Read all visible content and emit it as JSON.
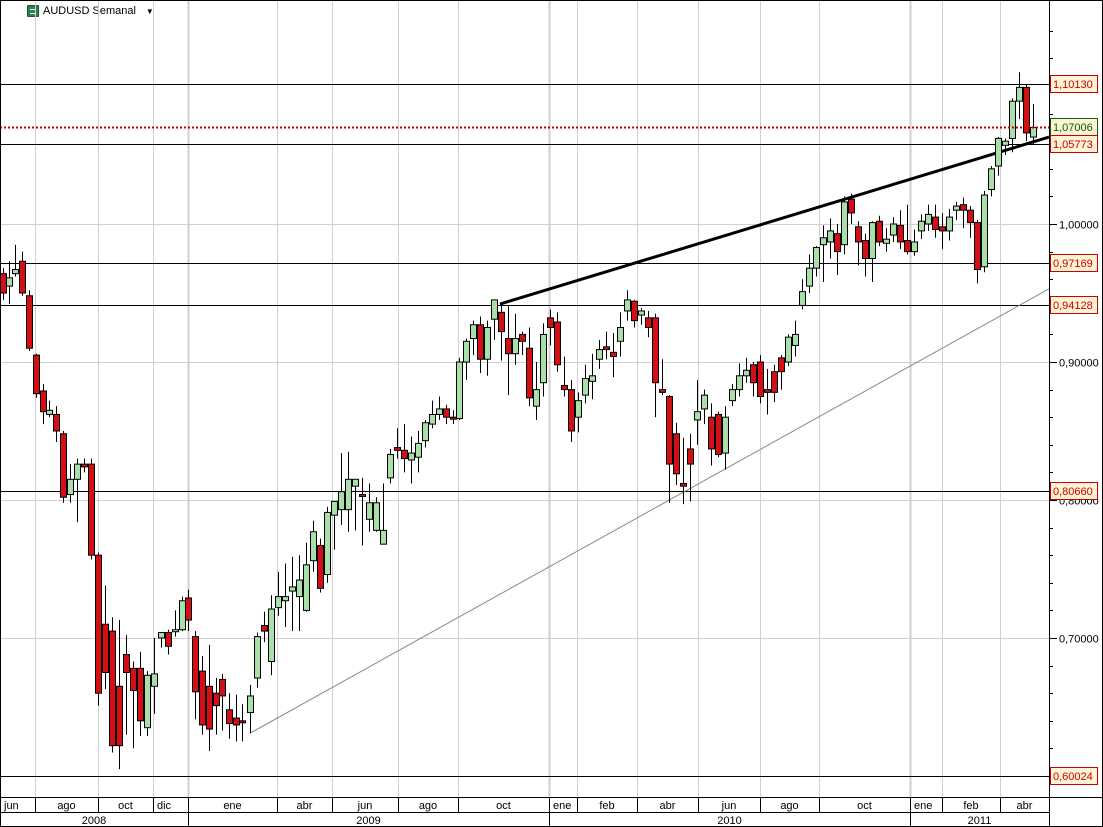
{
  "header": {
    "title": "AUDUSD Semanal",
    "dropdown_icon": "caret-down-icon",
    "symbol_icon": "instrument-icon"
  },
  "colors": {
    "bull_fill": "#a8e0a8",
    "bear_fill": "#d40f14",
    "candle_outline": "#000000",
    "grid": "#d0d0d0",
    "support_line": "#000000",
    "current_price_line": "#cc0000",
    "label_red_text": "#cc0000",
    "label_green_text": "#006600",
    "label_bg": "#fff3d6"
  },
  "price_axis": {
    "ticks": [
      "1,00000",
      "0,90000",
      "0,80000",
      "0,70000"
    ],
    "levels": [
      {
        "label": "1,10130",
        "value": 1.1013,
        "style": "red"
      },
      {
        "label": "1,07006",
        "value": 1.07006,
        "style": "green"
      },
      {
        "label": "1,05773",
        "value": 1.05773,
        "style": "red"
      },
      {
        "label": "0,97169",
        "value": 0.97169,
        "style": "red"
      },
      {
        "label": "0,94128",
        "value": 0.94128,
        "style": "red"
      },
      {
        "label": "0,80660",
        "value": 0.8066,
        "style": "red"
      },
      {
        "label": "0,60024",
        "value": 0.60024,
        "style": "red"
      }
    ]
  },
  "time_axis": {
    "months": [
      {
        "label": "jun",
        "x0": 0,
        "x1": 35
      },
      {
        "label": "ago",
        "x0": 35,
        "x1": 98
      },
      {
        "label": "oct",
        "x0": 98,
        "x1": 153
      },
      {
        "label": "dic",
        "x0": 153,
        "x1": 188
      },
      {
        "label": "ene",
        "x0": 188,
        "x1": 277
      },
      {
        "label": "abr",
        "x0": 277,
        "x1": 332
      },
      {
        "label": "jun",
        "x0": 332,
        "x1": 398
      },
      {
        "label": "ago",
        "x0": 398,
        "x1": 458
      },
      {
        "label": "oct",
        "x0": 458,
        "x1": 549
      },
      {
        "label": "ene",
        "x0": 549,
        "x1": 577
      },
      {
        "label": "feb",
        "x0": 577,
        "x1": 637
      },
      {
        "label": "abr",
        "x0": 637,
        "x1": 698
      },
      {
        "label": "jun",
        "x0": 698,
        "x1": 760
      },
      {
        "label": "ago",
        "x0": 760,
        "x1": 819
      },
      {
        "label": "oct",
        "x0": 819,
        "x1": 910
      },
      {
        "label": "ene",
        "x0": 910,
        "x1": 942
      },
      {
        "label": "feb",
        "x0": 942,
        "x1": 1000
      },
      {
        "label": "abr",
        "x0": 1000,
        "x1": 1049
      }
    ],
    "years": [
      {
        "label": "2008",
        "x0": 0,
        "x1": 188
      },
      {
        "label": "2009",
        "x0": 188,
        "x1": 549
      },
      {
        "label": "2010",
        "x0": 549,
        "x1": 910
      },
      {
        "label": "2011",
        "x0": 910,
        "x1": 1049
      }
    ]
  },
  "chart_data": {
    "type": "candlestick",
    "title": "AUDUSD Semanal",
    "xlabel": "",
    "ylabel": "",
    "ylim": [
      0.582,
      1.162
    ],
    "grid": true,
    "x_range": [
      "2008-06",
      "2011-04"
    ],
    "y_ticks": [
      1.0,
      0.9,
      0.8,
      0.7
    ],
    "horizontal_levels": [
      1.1013,
      1.05773,
      0.97169,
      0.94128,
      0.8066,
      0.60024
    ],
    "current_price": 1.07006,
    "trendlines": [
      {
        "name": "resistance",
        "from": {
          "x": 500,
          "price": 0.942
        },
        "to": {
          "x": 1049,
          "price": 1.063
        },
        "style": "thick"
      },
      {
        "name": "support",
        "from": {
          "x": 250,
          "price": 0.631
        },
        "to": {
          "x": 1049,
          "price": 0.953
        },
        "style": "thin"
      }
    ],
    "candles": [
      [
        3,
        0.964,
        0.95,
        0.968,
        0.945
      ],
      [
        9,
        0.955,
        0.961,
        0.973,
        0.942
      ],
      [
        15,
        0.964,
        0.967,
        0.985,
        0.962
      ],
      [
        22,
        0.973,
        0.95,
        0.98,
        0.948
      ],
      [
        29,
        0.948,
        0.91,
        0.952,
        0.908
      ],
      [
        36,
        0.905,
        0.877,
        0.906,
        0.874
      ],
      [
        43,
        0.879,
        0.864,
        0.884,
        0.855
      ],
      [
        49,
        0.862,
        0.865,
        0.872,
        0.86
      ],
      [
        56,
        0.862,
        0.85,
        0.868,
        0.842
      ],
      [
        63,
        0.848,
        0.802,
        0.85,
        0.798
      ],
      [
        70,
        0.804,
        0.815,
        0.826,
        0.798
      ],
      [
        77,
        0.815,
        0.826,
        0.83,
        0.784
      ],
      [
        84,
        0.826,
        0.824,
        0.83,
        0.82
      ],
      [
        91,
        0.826,
        0.76,
        0.83,
        0.757
      ],
      [
        98,
        0.76,
        0.66,
        0.762,
        0.651
      ],
      [
        105,
        0.71,
        0.675,
        0.738,
        0.663
      ],
      [
        112,
        0.705,
        0.622,
        0.715,
        0.617
      ],
      [
        119,
        0.665,
        0.622,
        0.713,
        0.605
      ],
      [
        126,
        0.688,
        0.675,
        0.702,
        0.63
      ],
      [
        133,
        0.678,
        0.662,
        0.683,
        0.62
      ],
      [
        140,
        0.678,
        0.64,
        0.69,
        0.629
      ],
      [
        147,
        0.635,
        0.673,
        0.676,
        0.629
      ],
      [
        154,
        0.665,
        0.674,
        0.7,
        0.645
      ],
      [
        161,
        0.7,
        0.704,
        0.704,
        0.693
      ],
      [
        168,
        0.704,
        0.694,
        0.706,
        0.688
      ],
      [
        175,
        0.705,
        0.706,
        0.72,
        0.701
      ],
      [
        182,
        0.706,
        0.727,
        0.73,
        0.705
      ],
      [
        188,
        0.729,
        0.713,
        0.735,
        0.705
      ],
      [
        195,
        0.701,
        0.661,
        0.705,
        0.641
      ],
      [
        202,
        0.676,
        0.637,
        0.687,
        0.63
      ],
      [
        209,
        0.665,
        0.634,
        0.695,
        0.618
      ],
      [
        216,
        0.66,
        0.651,
        0.671,
        0.63
      ],
      [
        222,
        0.67,
        0.658,
        0.674,
        0.633
      ],
      [
        229,
        0.648,
        0.638,
        0.66,
        0.627
      ],
      [
        236,
        0.642,
        0.637,
        0.659,
        0.625
      ],
      [
        242,
        0.64,
        0.639,
        0.652,
        0.625
      ],
      [
        250,
        0.646,
        0.658,
        0.666,
        0.631
      ],
      [
        257,
        0.671,
        0.701,
        0.704,
        0.664
      ],
      [
        264,
        0.709,
        0.705,
        0.719,
        0.697
      ],
      [
        271,
        0.683,
        0.721,
        0.731,
        0.673
      ],
      [
        278,
        0.722,
        0.73,
        0.748,
        0.716
      ],
      [
        285,
        0.727,
        0.73,
        0.754,
        0.708
      ],
      [
        292,
        0.734,
        0.737,
        0.759,
        0.705
      ],
      [
        299,
        0.73,
        0.742,
        0.76,
        0.705
      ],
      [
        306,
        0.72,
        0.753,
        0.769,
        0.719
      ],
      [
        313,
        0.756,
        0.777,
        0.785,
        0.748
      ],
      [
        320,
        0.767,
        0.736,
        0.772,
        0.733
      ],
      [
        327,
        0.746,
        0.791,
        0.795,
        0.74
      ],
      [
        334,
        0.789,
        0.799,
        0.799,
        0.764
      ],
      [
        341,
        0.793,
        0.806,
        0.834,
        0.782
      ],
      [
        348,
        0.793,
        0.815,
        0.835,
        0.777
      ],
      [
        355,
        0.81,
        0.815,
        0.815,
        0.778
      ],
      [
        362,
        0.804,
        0.803,
        0.816,
        0.767
      ],
      [
        369,
        0.786,
        0.798,
        0.812,
        0.777
      ],
      [
        376,
        0.778,
        0.798,
        0.802,
        0.777
      ],
      [
        383,
        0.768,
        0.778,
        0.812,
        0.768
      ],
      [
        390,
        0.816,
        0.833,
        0.837,
        0.812
      ],
      [
        397,
        0.838,
        0.836,
        0.852,
        0.83
      ],
      [
        404,
        0.836,
        0.83,
        0.855,
        0.82
      ],
      [
        411,
        0.829,
        0.834,
        0.846,
        0.812
      ],
      [
        418,
        0.831,
        0.841,
        0.85,
        0.82
      ],
      [
        425,
        0.843,
        0.856,
        0.858,
        0.838
      ],
      [
        432,
        0.855,
        0.862,
        0.872,
        0.852
      ],
      [
        439,
        0.862,
        0.866,
        0.875,
        0.858
      ],
      [
        446,
        0.866,
        0.86,
        0.869,
        0.855
      ],
      [
        453,
        0.86,
        0.859,
        0.865,
        0.855
      ],
      [
        459,
        0.859,
        0.9,
        0.903,
        0.858
      ],
      [
        466,
        0.9,
        0.915,
        0.917,
        0.887
      ],
      [
        473,
        0.917,
        0.927,
        0.93,
        0.905
      ],
      [
        480,
        0.927,
        0.902,
        0.933,
        0.892
      ],
      [
        487,
        0.902,
        0.925,
        0.93,
        0.89
      ],
      [
        494,
        0.931,
        0.945,
        0.945,
        0.916
      ],
      [
        501,
        0.936,
        0.922,
        0.942,
        0.901
      ],
      [
        508,
        0.917,
        0.906,
        0.941,
        0.876
      ],
      [
        515,
        0.906,
        0.917,
        0.935,
        0.898
      ],
      [
        522,
        0.92,
        0.915,
        0.922,
        0.905
      ],
      [
        529,
        0.91,
        0.874,
        0.925,
        0.868
      ],
      [
        536,
        0.868,
        0.88,
        0.9,
        0.858
      ],
      [
        543,
        0.885,
        0.92,
        0.928,
        0.875
      ],
      [
        550,
        0.932,
        0.925,
        0.938,
        0.912
      ],
      [
        557,
        0.929,
        0.898,
        0.936,
        0.893
      ],
      [
        564,
        0.883,
        0.88,
        0.904,
        0.875
      ],
      [
        571,
        0.88,
        0.85,
        0.887,
        0.842
      ],
      [
        578,
        0.86,
        0.872,
        0.878,
        0.849
      ],
      [
        585,
        0.876,
        0.888,
        0.898,
        0.87
      ],
      [
        592,
        0.886,
        0.89,
        0.906,
        0.873
      ],
      [
        599,
        0.902,
        0.909,
        0.916,
        0.895
      ],
      [
        606,
        0.911,
        0.909,
        0.922,
        0.902
      ],
      [
        613,
        0.907,
        0.904,
        0.921,
        0.889
      ],
      [
        620,
        0.915,
        0.925,
        0.936,
        0.904
      ],
      [
        627,
        0.937,
        0.945,
        0.952,
        0.93
      ],
      [
        634,
        0.944,
        0.93,
        0.945,
        0.925
      ],
      [
        641,
        0.934,
        0.937,
        0.939,
        0.927
      ],
      [
        648,
        0.932,
        0.925,
        0.937,
        0.918
      ],
      [
        655,
        0.932,
        0.885,
        0.935,
        0.86
      ],
      [
        662,
        0.88,
        0.878,
        0.902,
        0.876
      ],
      [
        669,
        0.875,
        0.826,
        0.876,
        0.798
      ],
      [
        676,
        0.848,
        0.819,
        0.856,
        0.811
      ],
      [
        683,
        0.812,
        0.81,
        0.845,
        0.797
      ],
      [
        690,
        0.837,
        0.826,
        0.848,
        0.799
      ],
      [
        697,
        0.858,
        0.864,
        0.887,
        0.84
      ],
      [
        704,
        0.866,
        0.876,
        0.88,
        0.855
      ],
      [
        711,
        0.86,
        0.837,
        0.87,
        0.825
      ],
      [
        718,
        0.862,
        0.833,
        0.864,
        0.831
      ],
      [
        725,
        0.834,
        0.86,
        0.868,
        0.822
      ],
      [
        732,
        0.872,
        0.88,
        0.884,
        0.868
      ],
      [
        739,
        0.88,
        0.89,
        0.899,
        0.875
      ],
      [
        746,
        0.89,
        0.894,
        0.903,
        0.885
      ],
      [
        753,
        0.898,
        0.885,
        0.9,
        0.875
      ],
      [
        760,
        0.9,
        0.875,
        0.905,
        0.87
      ],
      [
        767,
        0.88,
        0.878,
        0.895,
        0.862
      ],
      [
        774,
        0.893,
        0.878,
        0.898,
        0.871
      ],
      [
        781,
        0.903,
        0.893,
        0.905,
        0.88
      ],
      [
        788,
        0.9,
        0.918,
        0.92,
        0.897
      ],
      [
        795,
        0.912,
        0.92,
        0.93,
        0.904
      ],
      [
        802,
        0.941,
        0.951,
        0.96,
        0.938
      ],
      [
        809,
        0.955,
        0.968,
        0.978,
        0.95
      ],
      [
        816,
        0.968,
        0.983,
        0.984,
        0.962
      ],
      [
        823,
        0.985,
        0.99,
        0.999,
        0.958
      ],
      [
        830,
        0.987,
        0.995,
        1.004,
        0.975
      ],
      [
        837,
        0.993,
        0.98,
        1.0,
        0.963
      ],
      [
        844,
        0.985,
        1.016,
        1.02,
        0.978
      ],
      [
        851,
        1.018,
        1.008,
        1.022,
        1.0
      ],
      [
        858,
        0.998,
        0.987,
        1.002,
        0.97
      ],
      [
        865,
        0.988,
        0.975,
        0.993,
        0.962
      ],
      [
        872,
        0.975,
        1.001,
        1.002,
        0.958
      ],
      [
        879,
        1.002,
        0.987,
        1.006,
        0.984
      ],
      [
        886,
        0.986,
        0.989,
        0.997,
        0.98
      ],
      [
        893,
        0.992,
        1.0,
        1.005,
        0.987
      ],
      [
        900,
        0.999,
        0.987,
        1.01,
        0.982
      ],
      [
        907,
        0.988,
        0.98,
        1.014,
        0.978
      ],
      [
        914,
        0.98,
        0.987,
        0.996,
        0.977
      ],
      [
        921,
        0.995,
        1.002,
        1.007,
        0.989
      ],
      [
        928,
        1.0,
        1.007,
        1.014,
        0.995
      ],
      [
        935,
        1.005,
        0.996,
        1.014,
        0.99
      ],
      [
        942,
        0.998,
        0.995,
        1.008,
        0.982
      ],
      [
        949,
        0.995,
        1.005,
        1.011,
        0.988
      ],
      [
        956,
        1.01,
        1.013,
        1.016,
        1.003
      ],
      [
        963,
        1.014,
        1.01,
        1.019,
        0.997
      ],
      [
        970,
        1.01,
        1.001,
        1.013,
        0.99
      ],
      [
        977,
        1.001,
        0.967,
        1.003,
        0.957
      ],
      [
        984,
        0.969,
        1.021,
        1.024,
        0.965
      ],
      [
        991,
        1.025,
        1.04,
        1.042,
        1.02
      ],
      [
        998,
        1.042,
        1.062,
        1.063,
        1.035
      ],
      [
        1005,
        1.057,
        1.06,
        1.062,
        1.05
      ],
      [
        1012,
        1.062,
        1.089,
        1.091,
        1.052
      ],
      [
        1019,
        1.089,
        1.099,
        1.11,
        1.076
      ],
      [
        1026,
        1.099,
        1.066,
        1.101,
        1.06
      ],
      [
        1033,
        1.063,
        1.07,
        1.087,
        1.058
      ]
    ]
  }
}
